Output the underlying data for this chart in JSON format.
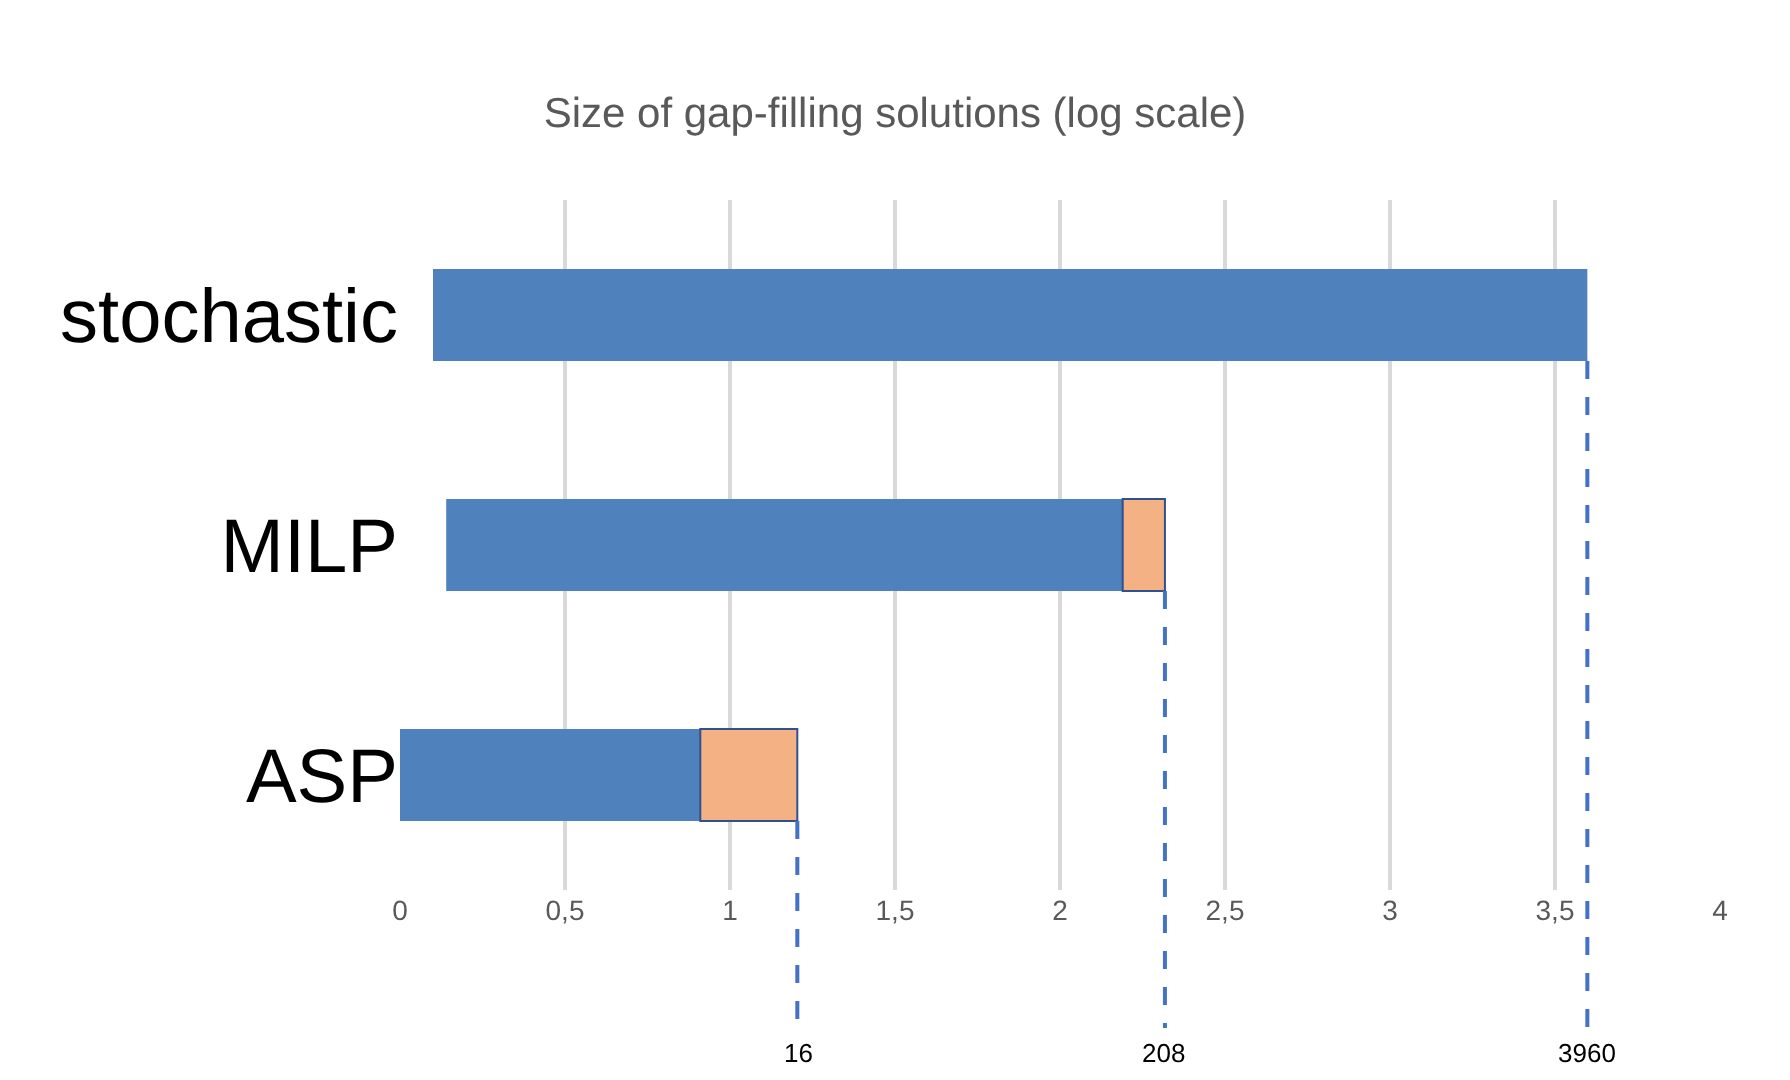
{
  "chart_data": {
    "type": "bar",
    "title": "Size of gap-filling solutions (log scale)",
    "orientation": "horizontal",
    "categories": [
      "stochastic",
      "MILP",
      "ASP"
    ],
    "series": [
      {
        "color": "#4f81bd",
        "base": [
          0.1,
          0.14,
          0
        ],
        "values": [
          3.498,
          2.05,
          0.91
        ]
      },
      {
        "color": "#f4b183",
        "base": [
          null,
          2.19,
          0.91
        ],
        "values": [
          null,
          0.128,
          0.294
        ]
      }
    ],
    "xlim": [
      0,
      4
    ],
    "xticks": [
      0,
      {
        "value": 0.5,
        "label": "0,5"
      },
      1,
      {
        "value": 1.5,
        "label": "1,5"
      },
      2,
      {
        "value": 2.5,
        "label": "2,5"
      },
      3,
      {
        "value": 3.5,
        "label": "3,5"
      },
      4
    ],
    "grid": "x",
    "ref_lines": [
      {
        "axis": "x",
        "value": 1.204,
        "color": "#4472c4",
        "line_style": "dashed"
      },
      {
        "axis": "x",
        "value": 2.318,
        "color": "#4472c4",
        "line_style": "dashed"
      },
      {
        "axis": "x",
        "value": 3.598,
        "color": "#4472c4",
        "line_style": "dashed"
      }
    ],
    "annotations": [
      "16",
      "208",
      "3960"
    ]
  }
}
